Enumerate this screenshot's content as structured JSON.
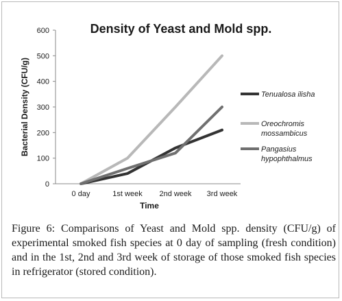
{
  "chart_data": {
    "type": "line",
    "title": "Density of Yeast and Mold spp.",
    "xlabel": "Time",
    "ylabel": "Bacterial Density (CFU/g)",
    "categories": [
      "0 day",
      "1st  week",
      "2nd week",
      "3rd week"
    ],
    "ylim": [
      0,
      600
    ],
    "yticks": [
      0,
      100,
      200,
      300,
      400,
      500,
      600
    ],
    "grid": false,
    "legend_position": "right",
    "series": [
      {
        "name": "Tenualosa ilisha",
        "values": [
          0,
          40,
          140,
          210
        ],
        "color": "#333333"
      },
      {
        "name": "Oreochromis mossambicus",
        "values": [
          0,
          100,
          300,
          500
        ],
        "color": "#b8b8b8"
      },
      {
        "name": "Pangasius hypophthalmus",
        "values": [
          0,
          60,
          120,
          300
        ],
        "color": "#707070"
      }
    ]
  },
  "caption": {
    "label": "Figure 6:",
    "text": " Comparisons of Yeast and Mold spp. density (CFU/g) of experimental smoked fish species at 0 day of sampling (fresh condition) and in the 1st, 2nd and 3rd week of storage of those smoked fish species in refrigerator (stored condition)."
  }
}
